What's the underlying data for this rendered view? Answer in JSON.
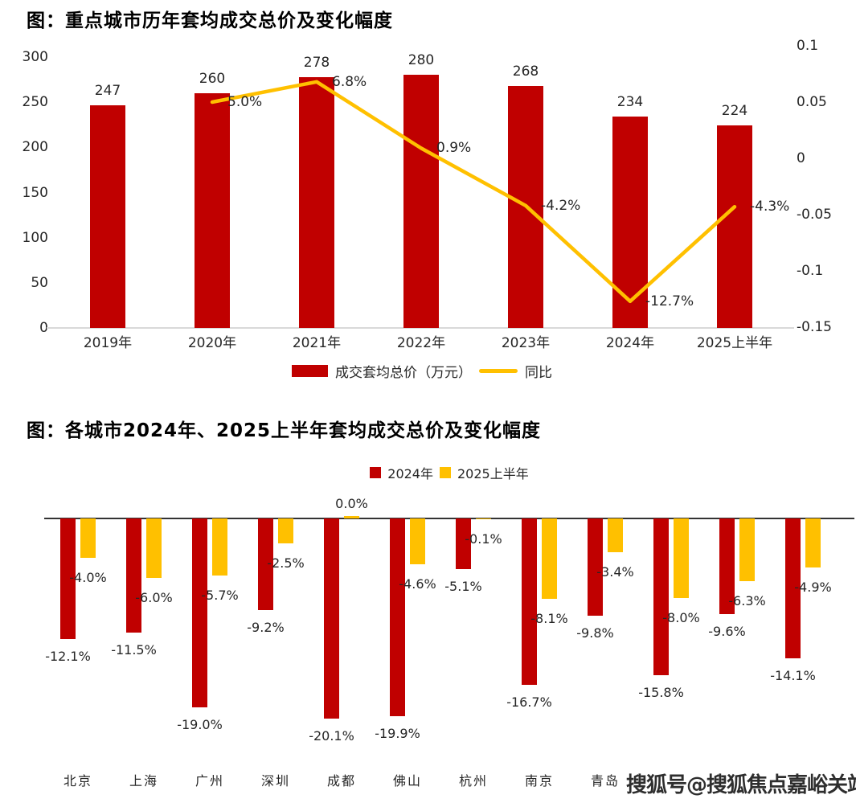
{
  "colors": {
    "red": "#c00000",
    "yellow": "#ffc000",
    "text": "#262626",
    "baseline_light": "#d9d9d9",
    "baseline_dark": "#333333"
  },
  "chart_data": [
    {
      "type": "bar+line",
      "title": "图：重点城市历年套均成交总价及变化幅度",
      "categories": [
        "2019年",
        "2020年",
        "2021年",
        "2022年",
        "2023年",
        "2024年",
        "2025上半年"
      ],
      "bar_series": {
        "name": "成交套均总价（万元）",
        "color": "#c00000",
        "axis": "left",
        "values": [
          247,
          260,
          278,
          280,
          268,
          234,
          224
        ]
      },
      "line_series": {
        "name": "同比",
        "color": "#ffc000",
        "axis": "right",
        "values": [
          null,
          0.05,
          0.068,
          0.009,
          -0.042,
          -0.127,
          -0.043
        ],
        "point_labels": [
          "",
          "5.0%",
          "6.8%",
          "0.9%",
          "-4.2%",
          "-12.7%",
          "-4.3%"
        ]
      },
      "left_axis": {
        "range": [
          0,
          300
        ],
        "ticks": [
          "300",
          "250",
          "200",
          "150",
          "100",
          "50",
          "0"
        ]
      },
      "right_axis": {
        "range": [
          -0.15,
          0.1
        ],
        "ticks": [
          "0.1",
          "0.05",
          "0",
          "-0.05",
          "-0.1",
          "-0.15"
        ]
      },
      "legend": [
        {
          "swatch": "bar",
          "color": "#c00000",
          "label": "成交套均总价（万元）"
        },
        {
          "swatch": "line",
          "color": "#ffc000",
          "label": "同比"
        }
      ]
    },
    {
      "type": "bar",
      "title": "图：各城市2024年、2025上半年套均成交总价及变化幅度",
      "categories": [
        "北京",
        "上海",
        "广州",
        "深圳",
        "成都",
        "佛山",
        "杭州",
        "南京",
        "青岛",
        "",
        "",
        ""
      ],
      "categories_note": "last three category labels are obscured by the watermark",
      "series": [
        {
          "name": "2024年",
          "color": "#c00000",
          "values": [
            -12.1,
            -11.5,
            -19.0,
            -9.2,
            -20.1,
            -19.9,
            -5.1,
            -16.7,
            -9.8,
            -15.8,
            -9.6,
            -14.1
          ]
        },
        {
          "name": "2025上半年",
          "color": "#ffc000",
          "values": [
            -4.0,
            -6.0,
            -5.7,
            -2.5,
            0.0,
            -4.6,
            -0.1,
            -8.1,
            -3.4,
            -8.0,
            -6.3,
            -4.9
          ]
        }
      ],
      "value_format": "percent",
      "legend": [
        {
          "swatch": "square",
          "color": "#c00000",
          "label": "2024年"
        },
        {
          "swatch": "square",
          "color": "#ffc000",
          "label": "2025上半年"
        }
      ]
    }
  ],
  "watermark": {
    "text": "搜狐号@搜狐焦点嘉峪关站"
  }
}
